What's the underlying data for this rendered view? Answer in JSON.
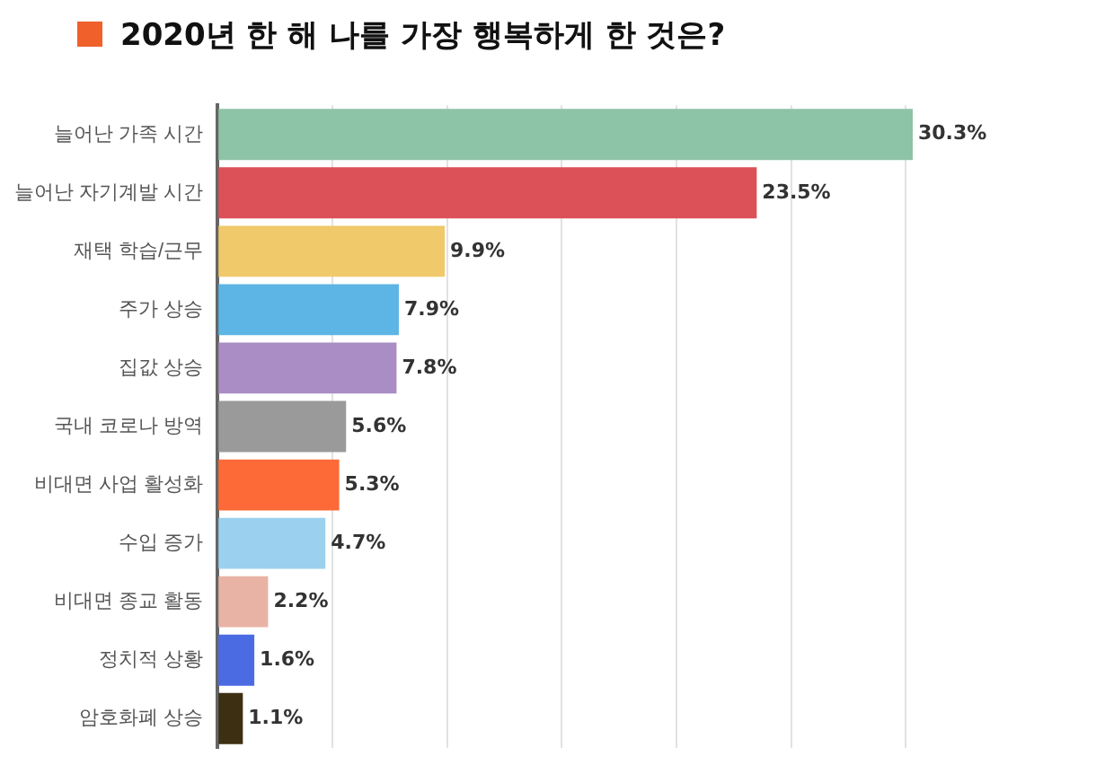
{
  "chart_data": {
    "type": "bar",
    "orientation": "horizontal",
    "title": "2020년 한 해 나를 가장 행복하게 한 것은?",
    "categories": [
      "늘어난 가족 시간",
      "늘어난 자기계발 시간",
      "재택 학습/근무",
      "주가 상승",
      "집값 상승",
      "국내 코로나 방역",
      "비대면 사업 활성화",
      "수입 증가",
      "비대면 종교 활동",
      "정치적 상황",
      "암호화폐 상승"
    ],
    "values": [
      30.3,
      23.5,
      9.9,
      7.9,
      7.8,
      5.6,
      5.3,
      4.7,
      2.2,
      1.6,
      1.1
    ],
    "value_labels": [
      "30.3%",
      "23.5%",
      "9.9%",
      "7.9%",
      "7.8%",
      "5.6%",
      "5.3%",
      "4.7%",
      "2.2%",
      "1.6%",
      "1.1%"
    ],
    "colors": [
      "#8dc3a7",
      "#dc5057",
      "#f0c96a",
      "#5cb5e4",
      "#a98dc4",
      "#9a9a9a",
      "#fd6a37",
      "#9bd1ee",
      "#e8b3a5",
      "#4b6be3",
      "#3d2f12"
    ],
    "xticks": [
      {
        "value": 0,
        "label": null
      },
      {
        "value": 5,
        "label": null
      },
      {
        "value": 10,
        "label": null
      },
      {
        "value": 15,
        "label": null
      },
      {
        "value": 20,
        "label": null
      },
      {
        "value": 25,
        "label": null
      },
      {
        "value": 30,
        "label": null
      }
    ],
    "tick_labels": "y",
    "grid": "x",
    "legend": false
  }
}
